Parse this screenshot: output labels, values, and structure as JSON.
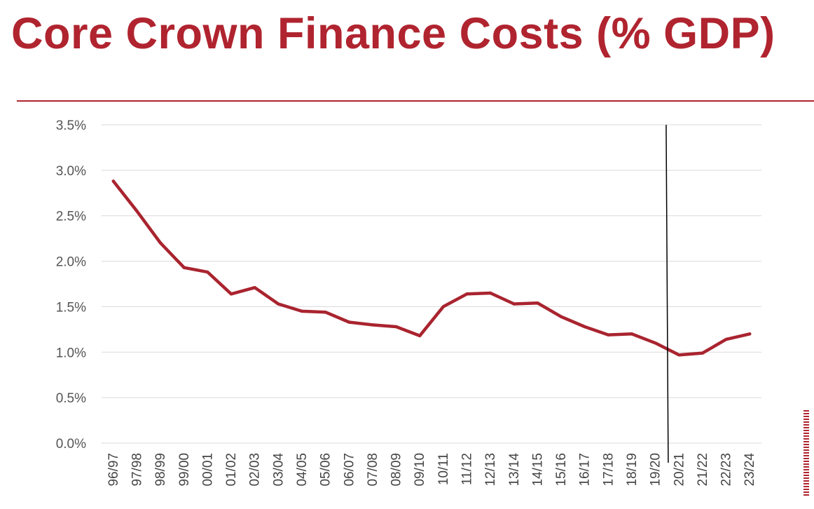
{
  "page": {
    "title": "Core Crown Finance Costs (% GDP)"
  },
  "colors": {
    "accent": "#b0242f",
    "line": "#a9242f",
    "grid": "#d9d9d9",
    "marker": "#000000"
  },
  "chart_data": {
    "type": "line",
    "title": "Core Crown Finance Costs (% GDP)",
    "xlabel": "",
    "ylabel": "",
    "ylim": [
      0,
      3.5
    ],
    "yticks": [
      "0.0%",
      "0.5%",
      "1.0%",
      "1.5%",
      "2.0%",
      "2.5%",
      "3.0%",
      "3.5%"
    ],
    "grid": true,
    "legend": "none",
    "categories": [
      "96/97",
      "97/98",
      "98/99",
      "99/00",
      "00/01",
      "01/02",
      "02/03",
      "03/04",
      "04/05",
      "05/06",
      "06/07",
      "07/08",
      "08/09",
      "09/10",
      "10/11",
      "11/12",
      "12/13",
      "13/14",
      "14/15",
      "15/16",
      "16/17",
      "17/18",
      "18/19",
      "19/20",
      "20/21",
      "21/22",
      "22/23",
      "23/24"
    ],
    "series": [
      {
        "values": [
          2.88,
          2.55,
          2.2,
          1.93,
          1.88,
          1.64,
          1.71,
          1.53,
          1.45,
          1.44,
          1.33,
          1.3,
          1.28,
          1.18,
          1.5,
          1.64,
          1.65,
          1.53,
          1.54,
          1.39,
          1.28,
          1.19,
          1.2,
          1.1,
          0.97,
          0.99,
          1.14,
          1.2
        ]
      }
    ],
    "marker_line": {
      "between": [
        "19/20",
        "20/21"
      ]
    }
  }
}
